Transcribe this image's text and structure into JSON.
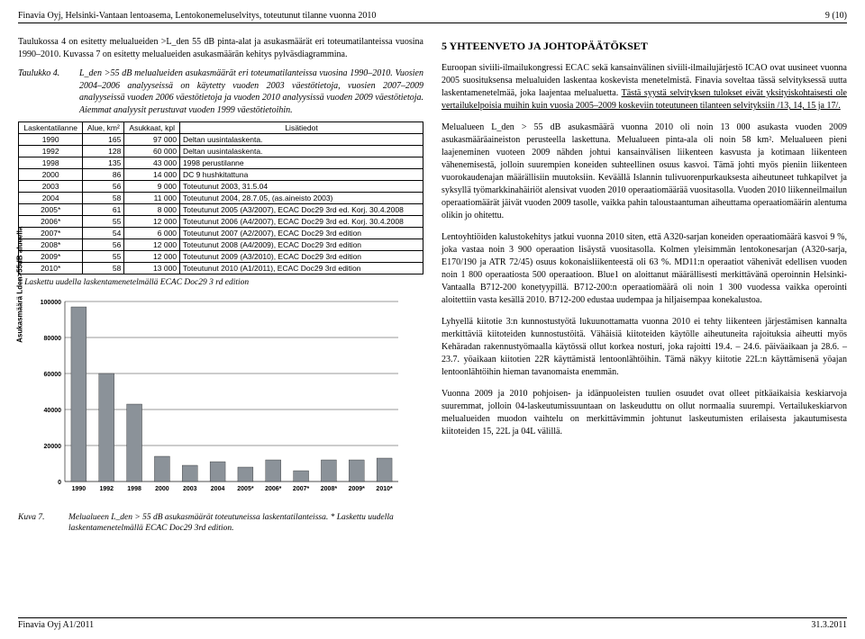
{
  "header": {
    "left": "Finavia Oyj, Helsinki-Vantaan lentoasema, Lentokonemeluselvitys, toteutunut tilanne vuonna 2010",
    "right": "9 (10)"
  },
  "left_col": {
    "intro": "Taulukossa 4 on esitetty melualueiden >L_den 55 dB pinta-alat ja asukasmäärät eri toteumatilanteissa vuosina 1990–2010. Kuvassa 7 on esitetty melualueiden asukasmäärän kehitys pylväsdiagrammina.",
    "table_label": "Taulukko 4.",
    "table_caption": "L_den >55 dB melualueiden asukasmäärät eri toteumatilanteissa vuosina 1990–2010. Vuosien 2004–2006 analyyseissä on käytetty vuoden 2003 väestötietoja, vuosien 2007–2009 analyyseissä vuoden 2006 väestötietoja ja vuoden 2010 analyysissä vuoden 2009 väestötietoja. Aiemmat analyysit perustuvat vuoden 1999 väestötietoihin.",
    "columns": [
      "Laskentatilanne",
      "Alue, km²",
      "Asukkaat, kpl",
      "Lisätiedot"
    ],
    "rows": [
      [
        "1990",
        "165",
        "97 000",
        "Deltan uusintalaskenta."
      ],
      [
        "1992",
        "128",
        "60 000",
        "Deltan uusintalaskenta."
      ],
      [
        "1998",
        "135",
        "43 000",
        "1998 perustilanne"
      ],
      [
        "2000",
        "86",
        "14 000",
        "DC 9 hushkitattuna"
      ],
      [
        "2003",
        "56",
        "9 000",
        "Toteutunut 2003, 31.5.04"
      ],
      [
        "2004",
        "58",
        "11 000",
        "Toteutunut 2004, 28.7.05, (as.aineisto 2003)"
      ],
      [
        "2005*",
        "61",
        "8 000",
        "Toteutunut 2005 (A3/2007), ECAC Doc29 3rd ed. Korj. 30.4.2008"
      ],
      [
        "2006*",
        "55",
        "12 000",
        "Toteutunut 2006 (A4/2007), ECAC Doc29 3rd ed. Korj. 30.4.2008"
      ],
      [
        "2007*",
        "54",
        "6 000",
        "Toteutunut 2007 (A2/2007), ECAC Doc29 3rd edition"
      ],
      [
        "2008*",
        "56",
        "12 000",
        "Toteutunut 2008 (A4/2009), ECAC Doc29 3rd edition"
      ],
      [
        "2009*",
        "55",
        "12 000",
        "Toteutunut 2009 (A3/2010), ECAC Doc29 3rd edition"
      ],
      [
        "2010*",
        "58",
        "13 000",
        "Toteutunut 2010 (A1/2011), ECAC Doc29 3rd edition"
      ]
    ],
    "table_footnote": "* Laskettu uudella laskentamenetelmällä ECAC Doc29 3 rd edition"
  },
  "chart": {
    "type": "bar",
    "ylabel": "Asukasmäärä Lden>55dB alueella",
    "categories": [
      "1990",
      "1992",
      "1998",
      "2000",
      "2003",
      "2004",
      "2005*",
      "2006*",
      "2007*",
      "2008*",
      "2009*",
      "2010*"
    ],
    "values": [
      97000,
      60000,
      43000,
      14000,
      9000,
      11000,
      8000,
      12000,
      6000,
      12000,
      12000,
      13000
    ],
    "ylim": [
      0,
      100000
    ],
    "ytick_step": 20000,
    "bar_color": "#8b9299",
    "grid_color": "#000000",
    "background_color": "#ffffff",
    "axis_fontsize": 7,
    "bar_width": 0.55
  },
  "figure_caption": {
    "label": "Kuva 7.",
    "text": "Melualueen L_den > 55 dB asukasmäärät toteutuneissa laskentatilanteissa. * Laskettu uudella laskentamenetelmällä ECAC Doc29 3rd edition."
  },
  "right_col": {
    "section_title": "5   YHTEENVETO JA JOHTOPÄÄTÖKSET",
    "p1_a": "Euroopan siviili-ilmailukongressi ECAC sekä kansainvälinen siviili-ilmailujärjestö ICAO ovat uusineet vuonna 2005 suosituksensa melualuiden laskentaa koskevista menetelmistä. Finavia soveltaa tässä selvityksessä uutta laskentamenetelmää, joka laajentaa melualuetta. ",
    "p1_u": "Tästä syystä selvityksen tulokset eivät yksityiskohtaisesti ole vertailukelpoisia muihin kuin vuosia 2005–2009 koskeviin toteutuneen tilanteen selvityksiin /13, 14, 15 ja 17/.",
    "p2": "Melualueen L_den > 55 dB asukasmäärä vuonna 2010 oli noin 13 000 asukasta vuoden 2009 asukasmääräaineiston perusteella laskettuna. Melualueen pinta-ala oli noin 58 km². Melualueen pieni laajeneminen vuoteen 2009 nähden johtui kansainvälisen liikenteen kasvusta ja kotimaan liikenteen vähenemisestä, jolloin suurempien koneiden suhteellinen osuus kasvoi. Tämä johti myös pieniin liikenteen vuorokaudenajan määrällisiin muutoksiin. Keväällä Islannin tulivuorenpurkauksesta aiheutuneet tuhkapilvet ja syksyllä työmarkkinahäiriöt alensivat vuoden 2010 operaatiomäärää vuositasolla. Vuoden 2010 liikenneilmailun operaatiomäärät jäivät vuoden 2009 tasolle, vaikka pahin taloustaantuman aiheuttama operaatiomäärin alentuma olikin jo ohitettu.",
    "p3": "Lentoyhtiöiden kalustokehitys jatkui vuonna 2010 siten, että A320-sarjan koneiden operaatiomäärä kasvoi 9 %, joka vastaa noin 3 900 operaation lisäystä vuositasolla. Kolmen yleisimmän lentokonesarjan (A320-sarja, E170/190 ja ATR 72/45) osuus kokonaisliikenteestä oli 63 %. MD11:n operaatiot vähenivät edellisen vuoden noin 1 800 operaatiosta 500 operaatioon. Blue1 on aloittanut määrällisesti merkittävänä operoinnin Helsinki-Vantaalla B712-200 konetyypillä. B712-200:n operaatiomäärä oli noin 1 300 vuodessa vaikka operointi aloitettiin vasta kesällä 2010. B712-200 edustaa uudempaa ja hiljaisempaa konekalustoa.",
    "p4": "Lyhyellä kiitotie 3:n kunnostustyötä lukuunottamatta vuonna 2010 ei tehty liikenteen järjestämisen kannalta merkittäviä kiitoteiden kunnostustöitä. Vähäisiä kiitoteiden käytölle aiheutuneita rajoituksia aiheutti myös Kehäradan rakennustyömaalla käytössä ollut korkea nosturi, joka rajoitti 19.4. – 24.6. päiväaikaan ja 28.6. – 23.7. yöaikaan kiitotien 22R käyttämistä lentoonlähtöihin. Tämä näkyy kiitotie 22L:n käyttämisenä yöajan lentoonlähtöihin hieman tavanomaista enemmän.",
    "p5": "Vuonna 2009 ja 2010 pohjoisen- ja idänpuoleisten tuulien osuudet ovat olleet pitkäaikaisia keskiarvoja suuremmat, jolloin 04-laskeutumissuuntaan on laskeuduttu on ollut normaalia suurempi. Vertailukeskiarvon melualueiden muodon vaihtelu on merkittävimmin johtunut laskeutumisten erilaisesta jakautumisesta kiitoteiden 15, 22L ja 04L välillä."
  },
  "footer": {
    "left": "Finavia Oyj A1/2011",
    "right": "31.3.2011"
  }
}
